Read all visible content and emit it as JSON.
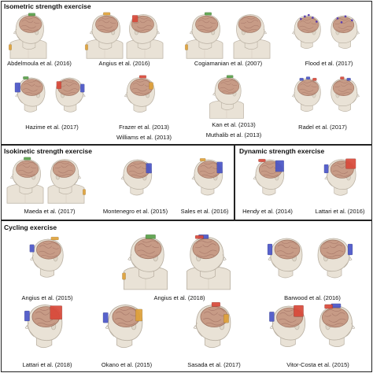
{
  "sections": {
    "isometric": {
      "title": "Isometric strength exercise",
      "captions": [
        "Abdelmoula et al. (2016)",
        "Angius et al. (2016)",
        "Cogiamanian et al. (2007)",
        "Flood et al. (2017)",
        "Hazime et al. (2017)",
        "Frazer et al. (2013)",
        "Williams et al. (2013)",
        "Kan et al. (2013)",
        "Muthalib et al. (2013)",
        "Radel et al. (2017)"
      ]
    },
    "isokinetic": {
      "title": "Isokinetic strength exercise",
      "captions": [
        "Maeda et al. (2017)",
        "Montenegro et al. (2015)",
        "Sales et al. (2016)"
      ]
    },
    "dynamic": {
      "title": "Dynamic strength exercise",
      "captions": [
        "Hendy et al. (2014)",
        "Lattari et al. (2016)"
      ]
    },
    "cycling": {
      "title": "Cycling exercise",
      "captions": [
        "Angius et al. (2015)",
        "Angius et al. (2018)",
        "Barwood et al. (2016)",
        "Lattari et al. (2018)",
        "Okano et al. (2015)",
        "Sasada et al. (2017)",
        "Vitor-Costa et al. (2015)"
      ]
    }
  }
}
